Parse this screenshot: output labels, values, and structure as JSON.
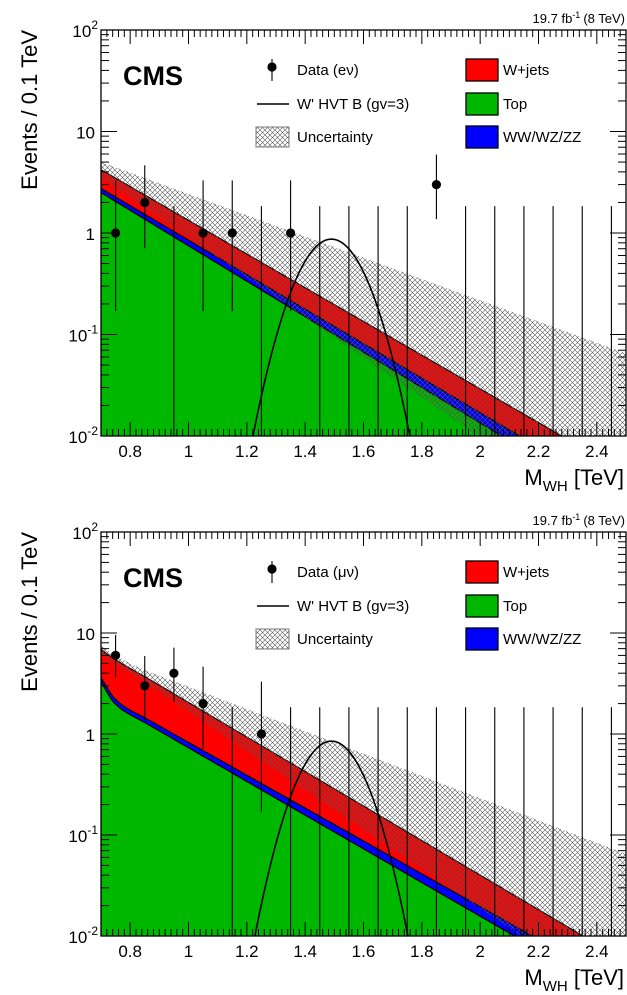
{
  "chart_data": [
    {
      "type": "area",
      "luminosity": "19.7 fb",
      "lumi_sup": "-1",
      "energy": "(8 TeV)",
      "cms_label": "CMS",
      "ylabel": "Events / 0.1 TeV",
      "xlabel_main": "M",
      "xlabel_sub": "WH",
      "xlabel_unit": " [TeV]",
      "xlim": [
        0.7,
        2.5
      ],
      "ylim": [
        0.01,
        100
      ],
      "yscale": "log",
      "x_ticks": [
        "0.8",
        "1",
        "1.2",
        "1.4",
        "1.6",
        "1.8",
        "2",
        "2.2",
        "2.4"
      ],
      "y_ticks": [
        {
          "base": "10",
          "exp": "-2",
          "value": 0.01
        },
        {
          "base": "10",
          "exp": "-1",
          "value": 0.1
        },
        {
          "base": "1",
          "exp": "",
          "value": 1
        },
        {
          "base": "10",
          "exp": "",
          "value": 10
        },
        {
          "base": "10",
          "exp": "2",
          "value": 100
        }
      ],
      "legend": [
        {
          "label": "Data (eν)",
          "kind": "data"
        },
        {
          "label": "W+jets",
          "kind": "fill",
          "color": "#ff0000"
        },
        {
          "label": "W' HVT B (gv=3)",
          "kind": "line"
        },
        {
          "label": "Top",
          "kind": "fill",
          "color": "#00b700"
        },
        {
          "label": "Uncertainty",
          "kind": "hatch"
        },
        {
          "label": "WW/WZ/ZZ",
          "kind": "fill",
          "color": "#0000ff"
        }
      ],
      "stack": {
        "x": [
          0.7,
          2.5
        ],
        "top": [
          2.5,
          0.0018
        ],
        "top_plus_diboson": [
          2.75,
          0.0024
        ],
        "total": [
          4.2,
          0.0043
        ],
        "uncertainty_upper": [
          5.0,
          0.065
        ],
        "uncertainty_lower": [
          3.5,
          0.001
        ]
      },
      "data_points": [
        {
          "x": 0.75,
          "y": 1,
          "err_low": 0.83,
          "err_high": 2.3
        },
        {
          "x": 0.85,
          "y": 2,
          "err_low": 1.29,
          "err_high": 2.64
        },
        {
          "x": 0.95,
          "y": 0,
          "err_low": 0,
          "err_high": 1.84
        },
        {
          "x": 1.05,
          "y": 1,
          "err_low": 0.83,
          "err_high": 2.3
        },
        {
          "x": 1.15,
          "y": 1,
          "err_low": 0.83,
          "err_high": 2.3
        },
        {
          "x": 1.25,
          "y": 0,
          "err_low": 0,
          "err_high": 1.84
        },
        {
          "x": 1.35,
          "y": 1,
          "err_low": 0.83,
          "err_high": 2.3
        },
        {
          "x": 1.45,
          "y": 0,
          "err_low": 0,
          "err_high": 1.84
        },
        {
          "x": 1.55,
          "y": 0,
          "err_low": 0,
          "err_high": 1.84
        },
        {
          "x": 1.65,
          "y": 0,
          "err_low": 0,
          "err_high": 1.84
        },
        {
          "x": 1.75,
          "y": 0,
          "err_low": 0,
          "err_high": 1.84
        },
        {
          "x": 1.85,
          "y": 3,
          "err_low": 1.63,
          "err_high": 2.92
        },
        {
          "x": 1.95,
          "y": 0,
          "err_low": 0,
          "err_high": 1.84
        },
        {
          "x": 2.05,
          "y": 0,
          "err_low": 0,
          "err_high": 1.84
        },
        {
          "x": 2.15,
          "y": 0,
          "err_low": 0,
          "err_high": 1.84
        },
        {
          "x": 2.25,
          "y": 0,
          "err_low": 0,
          "err_high": 1.84
        },
        {
          "x": 2.35,
          "y": 0,
          "err_low": 0,
          "err_high": 1.84
        },
        {
          "x": 2.45,
          "y": 0,
          "err_low": 0,
          "err_high": 1.84
        }
      ],
      "signal": {
        "peak_x": 1.49,
        "peak_y": 0.87,
        "sigma": 0.09
      },
      "colors": {
        "wjets": "#ff0000",
        "top": "#00b700",
        "diboson": "#0000ff"
      }
    },
    {
      "type": "area",
      "luminosity": "19.7 fb",
      "lumi_sup": "-1",
      "energy": "(8 TeV)",
      "cms_label": "CMS",
      "ylabel": "Events / 0.1 TeV",
      "xlabel_main": "M",
      "xlabel_sub": "WH",
      "xlabel_unit": " [TeV]",
      "xlim": [
        0.7,
        2.5
      ],
      "ylim": [
        0.01,
        100
      ],
      "yscale": "log",
      "x_ticks": [
        "0.8",
        "1",
        "1.2",
        "1.4",
        "1.6",
        "1.8",
        "2",
        "2.2",
        "2.4"
      ],
      "y_ticks": [
        {
          "base": "10",
          "exp": "-2",
          "value": 0.01
        },
        {
          "base": "10",
          "exp": "-1",
          "value": 0.1
        },
        {
          "base": "1",
          "exp": "",
          "value": 1
        },
        {
          "base": "10",
          "exp": "",
          "value": 10
        },
        {
          "base": "10",
          "exp": "2",
          "value": 100
        }
      ],
      "legend": [
        {
          "label": "Data (μν)",
          "kind": "data"
        },
        {
          "label": "W+jets",
          "kind": "fill",
          "color": "#ff0000"
        },
        {
          "label": "W' HVT B (gv=3)",
          "kind": "line"
        },
        {
          "label": "Top",
          "kind": "fill",
          "color": "#00b700"
        },
        {
          "label": "Uncertainty",
          "kind": "hatch"
        },
        {
          "label": "WW/WZ/ZZ",
          "kind": "fill",
          "color": "#0000ff"
        }
      ],
      "stack": {
        "x": [
          0.7,
          0.72,
          0.74,
          0.77,
          0.8,
          0.85,
          2.5
        ],
        "top": [
          3.3,
          2.6,
          2.1,
          1.75,
          1.55,
          1.3,
          0.0023
        ],
        "top_plus_diboson": [
          3.6,
          2.9,
          2.35,
          1.95,
          1.72,
          1.45,
          0.003
        ],
        "total": [
          6.9,
          6.2,
          5.7,
          5.0,
          4.45,
          3.7,
          0.0056
        ],
        "uncertainty_upper": [
          7.5,
          6.8,
          6.3,
          5.6,
          5.0,
          4.3,
          0.065
        ],
        "uncertainty_lower": [
          6.3,
          5.6,
          5.1,
          4.45,
          3.95,
          3.25,
          0.002
        ]
      },
      "data_points": [
        {
          "x": 0.75,
          "y": 6,
          "err_low": 2.38,
          "err_high": 3.58
        },
        {
          "x": 0.85,
          "y": 3,
          "err_low": 1.63,
          "err_high": 2.92
        },
        {
          "x": 0.95,
          "y": 4,
          "err_low": 1.91,
          "err_high": 3.16
        },
        {
          "x": 1.05,
          "y": 2,
          "err_low": 1.29,
          "err_high": 2.64
        },
        {
          "x": 1.15,
          "y": 0,
          "err_low": 0,
          "err_high": 1.84
        },
        {
          "x": 1.25,
          "y": 1,
          "err_low": 0.83,
          "err_high": 2.3
        },
        {
          "x": 1.35,
          "y": 0,
          "err_low": 0,
          "err_high": 1.84
        },
        {
          "x": 1.45,
          "y": 0,
          "err_low": 0,
          "err_high": 1.84
        },
        {
          "x": 1.55,
          "y": 0,
          "err_low": 0,
          "err_high": 1.84
        },
        {
          "x": 1.65,
          "y": 0,
          "err_low": 0,
          "err_high": 1.84
        },
        {
          "x": 1.75,
          "y": 0,
          "err_low": 0,
          "err_high": 1.84
        },
        {
          "x": 1.85,
          "y": 0,
          "err_low": 0,
          "err_high": 1.84
        },
        {
          "x": 1.95,
          "y": 0,
          "err_low": 0,
          "err_high": 1.84
        },
        {
          "x": 2.05,
          "y": 0,
          "err_low": 0,
          "err_high": 1.84
        },
        {
          "x": 2.15,
          "y": 0,
          "err_low": 0,
          "err_high": 1.84
        },
        {
          "x": 2.25,
          "y": 0,
          "err_low": 0,
          "err_high": 1.84
        },
        {
          "x": 2.35,
          "y": 0,
          "err_low": 0,
          "err_high": 1.84
        },
        {
          "x": 2.45,
          "y": 0,
          "err_low": 0,
          "err_high": 1.84
        }
      ],
      "signal": {
        "peak_x": 1.49,
        "peak_y": 0.85,
        "sigma": 0.088
      },
      "colors": {
        "wjets": "#ff0000",
        "top": "#00b700",
        "diboson": "#0000ff"
      }
    }
  ]
}
